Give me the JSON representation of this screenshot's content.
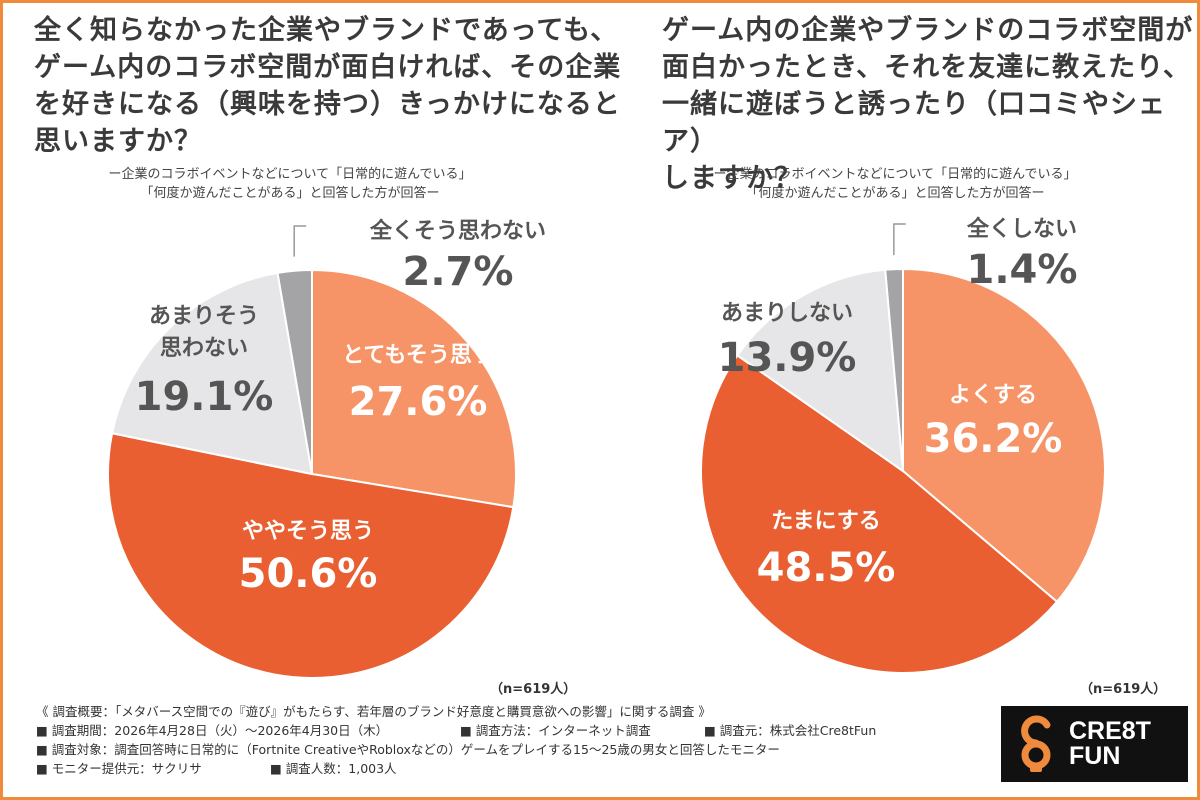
{
  "left": {
    "title_lines": [
      "全く知らなかった企業やブランドであっても、",
      "ゲーム内のコラボ空間が面白ければ、その企業",
      "を好きになる（興味を持つ）きっかけになると",
      "思いますか？"
    ],
    "subtitle_lines": [
      "ー企業のコラボイベントなどについて「日常的に遊んでいる」",
      "「何度か遊んだことがある」と回答した方が回答ー"
    ],
    "n_label": "（n=619人）"
  },
  "right": {
    "title_lines": [
      "ゲーム内の企業やブランドのコラボ空間が",
      "面白かったとき、それを友達に教えたり、",
      "一緒に遊ぼうと誘ったり（口コミやシェア）",
      "しますか？"
    ],
    "subtitle_lines": [
      "ー企業のコラボイベントなどについて「日常的に遊んでいる」",
      "「何度か遊んだことがある」と回答した方が回答ー"
    ],
    "n_label": "（n=619人）"
  },
  "chart_data": [
    {
      "type": "pie",
      "start_angle_deg": 0,
      "direction": "clockwise",
      "slices": [
        {
          "label_lines": [
            "とてもそう思う"
          ],
          "value": 27.6,
          "value_text": "27.6%",
          "color": "#F79467"
        },
        {
          "label_lines": [
            "ややそう思う"
          ],
          "value": 50.6,
          "value_text": "50.6%",
          "color": "#E95F31"
        },
        {
          "label_lines": [
            "あまりそう",
            "思わない"
          ],
          "value": 19.1,
          "value_text": "19.1%",
          "color": "#E6E6E8"
        },
        {
          "label_lines": [
            "全くそう思わない"
          ],
          "value": 2.7,
          "value_text": "2.7%",
          "color": "#A4A4A6"
        }
      ]
    },
    {
      "type": "pie",
      "start_angle_deg": 0,
      "direction": "clockwise",
      "slices": [
        {
          "label_lines": [
            "よくする"
          ],
          "value": 36.2,
          "value_text": "36.2%",
          "color": "#F79467"
        },
        {
          "label_lines": [
            "たまにする"
          ],
          "value": 48.5,
          "value_text": "48.5%",
          "color": "#E95F31"
        },
        {
          "label_lines": [
            "あまりしない"
          ],
          "value": 13.9,
          "value_text": "13.9%",
          "color": "#E6E6E8"
        },
        {
          "label_lines": [
            "全くしない"
          ],
          "value": 1.4,
          "value_text": "1.4%",
          "color": "#A4A4A6"
        }
      ]
    }
  ],
  "footer": {
    "summary": "《 調査概要：「メタバース空間での『遊び』がもたらす、若年層のブランド好意度と購買意欲への影響」に関する調査 》",
    "period": "■ 調査期間：2026年4月28日（火）〜2026年4月30日（木）",
    "method": "■ 調査方法：インターネット調査",
    "source": "■ 調査元：株式会社Cre8tFun",
    "target": "■ 調査対象：調査回答時に日常的に（Fortnite CreativeやRobloxなどの）ゲームをプレイする15〜25歳の男女と回答したモニター",
    "provider": "■ モニター提供元：サクリサ",
    "count": "■ 調査人数：1,003人"
  },
  "logo": {
    "line1": "CRE8T",
    "line2": "FUN",
    "mark_color": "#F08A3C"
  }
}
